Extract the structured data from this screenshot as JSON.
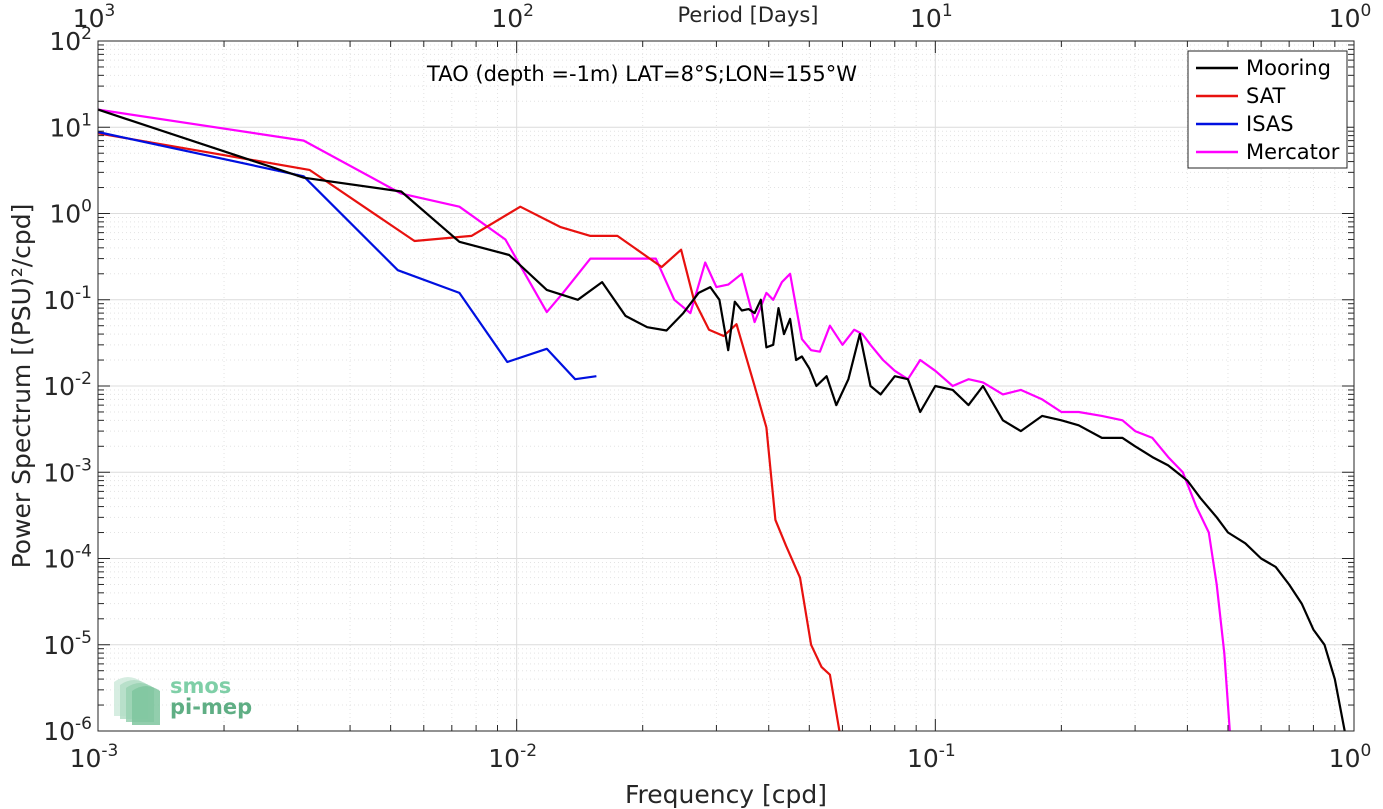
{
  "chart_data": {
    "type": "line",
    "xlabel": "Frequency [cpd]",
    "ylabel": "Power Spectrum [(PSU)²/cpd]",
    "top_xlabel": "Period [Days]",
    "annotation": "TAO (depth =-1m) LAT=8°S;LON=155°W",
    "xscale": "log",
    "yscale": "log",
    "xlim": [
      0.001,
      1
    ],
    "ylim": [
      1e-06,
      100
    ],
    "grid": true,
    "minor_grid": true,
    "legend_position": "top-right",
    "x_ticks": [
      {
        "value": 0.001,
        "base": "10",
        "exp": "-3"
      },
      {
        "value": 0.01,
        "base": "10",
        "exp": "-2"
      },
      {
        "value": 0.1,
        "base": "10",
        "exp": "-1"
      },
      {
        "value": 1,
        "base": "10",
        "exp": "0"
      }
    ],
    "top_ticks": [
      {
        "value": 0.001,
        "base": "10",
        "exp": "3"
      },
      {
        "value": 0.01,
        "base": "10",
        "exp": "2"
      },
      {
        "value": 0.1,
        "base": "10",
        "exp": "1"
      },
      {
        "value": 1,
        "base": "10",
        "exp": "0"
      }
    ],
    "y_ticks": [
      {
        "value": 100,
        "base": "10",
        "exp": "2"
      },
      {
        "value": 10,
        "base": "10",
        "exp": "1"
      },
      {
        "value": 1,
        "base": "10",
        "exp": "0"
      },
      {
        "value": 0.1,
        "base": "10",
        "exp": "-1"
      },
      {
        "value": 0.01,
        "base": "10",
        "exp": "-2"
      },
      {
        "value": 0.001,
        "base": "10",
        "exp": "-3"
      },
      {
        "value": 0.0001,
        "base": "10",
        "exp": "-4"
      },
      {
        "value": 1e-05,
        "base": "10",
        "exp": "-5"
      },
      {
        "value": 1e-06,
        "base": "10",
        "exp": "-6"
      }
    ],
    "series": [
      {
        "name": "Mooring",
        "color": "#000000",
        "x": [
          0.001,
          0.0031,
          0.0053,
          0.0073,
          0.0096,
          0.0118,
          0.014,
          0.016,
          0.0182,
          0.0205,
          0.0228,
          0.025,
          0.0272,
          0.029,
          0.0305,
          0.032,
          0.0332,
          0.0345,
          0.0358,
          0.037,
          0.0383,
          0.0395,
          0.041,
          0.0422,
          0.0435,
          0.045,
          0.0465,
          0.048,
          0.05,
          0.052,
          0.055,
          0.058,
          0.062,
          0.066,
          0.07,
          0.074,
          0.08,
          0.086,
          0.092,
          0.1,
          0.11,
          0.12,
          0.13,
          0.145,
          0.16,
          0.18,
          0.2,
          0.22,
          0.25,
          0.28,
          0.3,
          0.33,
          0.36,
          0.4,
          0.43,
          0.47,
          0.5,
          0.55,
          0.6,
          0.65,
          0.7,
          0.75,
          0.8,
          0.85,
          0.9,
          0.95
        ],
        "y": [
          16,
          2.6,
          1.8,
          0.47,
          0.33,
          0.13,
          0.1,
          0.16,
          0.065,
          0.048,
          0.044,
          0.07,
          0.12,
          0.14,
          0.1,
          0.026,
          0.095,
          0.075,
          0.078,
          0.07,
          0.1,
          0.028,
          0.03,
          0.08,
          0.04,
          0.06,
          0.02,
          0.022,
          0.016,
          0.01,
          0.013,
          0.006,
          0.012,
          0.04,
          0.01,
          0.008,
          0.013,
          0.012,
          0.005,
          0.01,
          0.009,
          0.006,
          0.01,
          0.004,
          0.003,
          0.0045,
          0.004,
          0.0035,
          0.0025,
          0.0025,
          0.002,
          0.0015,
          0.0012,
          0.0008,
          0.0005,
          0.0003,
          0.0002,
          0.00015,
          0.0001,
          8e-05,
          5e-05,
          3e-05,
          1.5e-05,
          1e-05,
          4e-06,
          1e-06
        ]
      },
      {
        "name": "SAT",
        "color": "#e8110f",
        "x": [
          0.001,
          0.0032,
          0.0057,
          0.0078,
          0.0102,
          0.0127,
          0.015,
          0.0174,
          0.0222,
          0.0247,
          0.0265,
          0.0288,
          0.0312,
          0.0335,
          0.037,
          0.0395,
          0.0415,
          0.044,
          0.0475,
          0.0505,
          0.0535,
          0.056,
          0.059
        ],
        "y": [
          8.5,
          3.2,
          0.48,
          0.55,
          1.2,
          0.7,
          0.55,
          0.55,
          0.24,
          0.38,
          0.1,
          0.045,
          0.038,
          0.052,
          0.01,
          0.0033,
          0.00028,
          0.00014,
          6e-05,
          1e-05,
          5.5e-06,
          4.5e-06,
          1e-06
        ]
      },
      {
        "name": "ISAS",
        "color": "#0010e0",
        "x": [
          0.001,
          0.0031,
          0.0052,
          0.0073,
          0.0095,
          0.0118,
          0.0138,
          0.0155
        ],
        "y": [
          8.8,
          2.7,
          0.22,
          0.12,
          0.019,
          0.027,
          0.012,
          0.013
        ]
      },
      {
        "name": "Mercator",
        "color": "#ff00ff",
        "x": [
          0.001,
          0.0031,
          0.0053,
          0.0073,
          0.0094,
          0.0118,
          0.0129,
          0.015,
          0.019,
          0.0215,
          0.0238,
          0.026,
          0.0282,
          0.03,
          0.032,
          0.0345,
          0.037,
          0.0395,
          0.041,
          0.043,
          0.045,
          0.048,
          0.0505,
          0.053,
          0.056,
          0.06,
          0.064,
          0.067,
          0.07,
          0.075,
          0.08,
          0.086,
          0.092,
          0.1,
          0.11,
          0.12,
          0.13,
          0.145,
          0.16,
          0.18,
          0.2,
          0.22,
          0.25,
          0.28,
          0.3,
          0.33,
          0.36,
          0.39,
          0.42,
          0.45,
          0.47,
          0.49,
          0.505
        ],
        "y": [
          16,
          7,
          1.7,
          1.2,
          0.5,
          0.072,
          0.12,
          0.3,
          0.3,
          0.3,
          0.1,
          0.07,
          0.27,
          0.14,
          0.15,
          0.2,
          0.055,
          0.12,
          0.1,
          0.16,
          0.2,
          0.035,
          0.026,
          0.025,
          0.05,
          0.03,
          0.045,
          0.04,
          0.03,
          0.02,
          0.015,
          0.012,
          0.02,
          0.015,
          0.01,
          0.012,
          0.011,
          0.008,
          0.009,
          0.007,
          0.005,
          0.005,
          0.0045,
          0.004,
          0.003,
          0.0025,
          0.0015,
          0.001,
          0.0004,
          0.0002,
          5e-05,
          8e-06,
          1e-06
        ]
      }
    ]
  },
  "logo": {
    "line1": "smos",
    "line2": "pi-mep"
  }
}
